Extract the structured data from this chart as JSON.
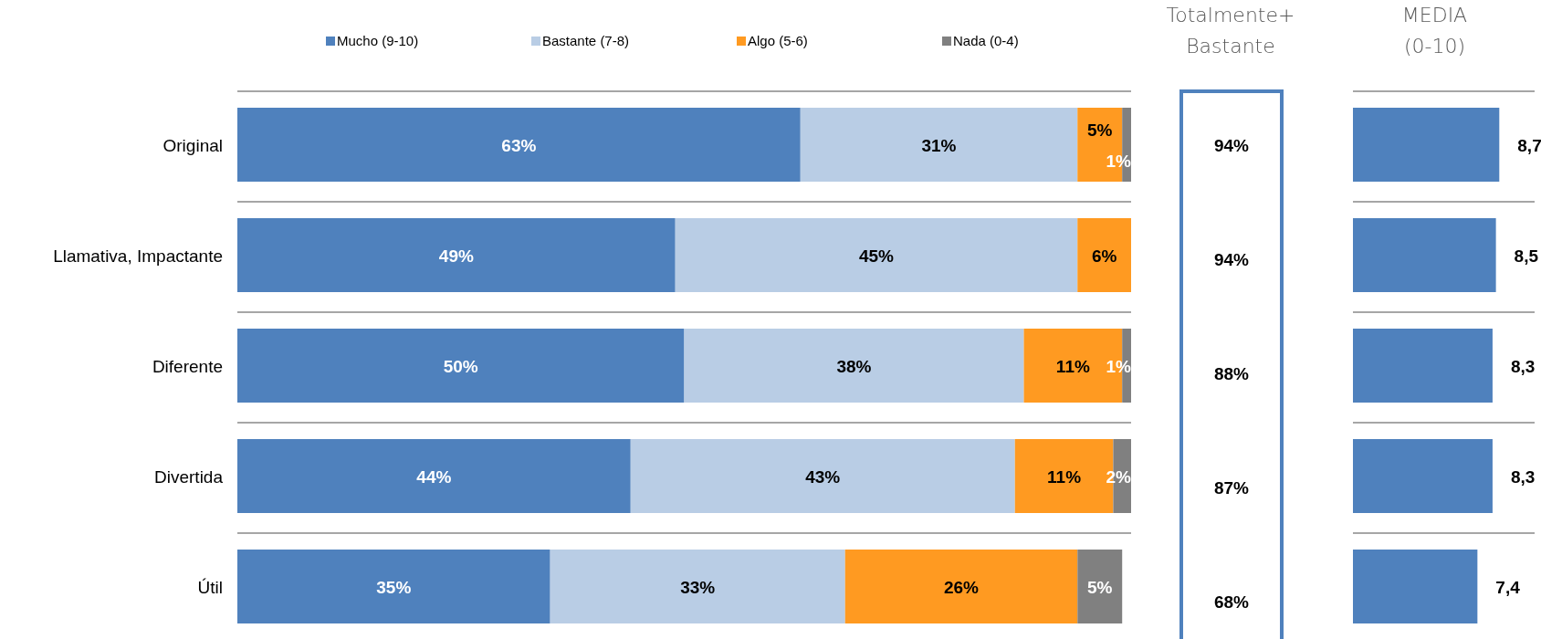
{
  "chart_data": [
    {
      "type": "bar",
      "orientation": "horizontal",
      "stacked": true,
      "categories": [
        "Original",
        "Llamativa, Impactante",
        "Diferente",
        "Divertida",
        "Útil"
      ],
      "xlim": [
        0,
        100
      ],
      "tick_labels": "y",
      "grid": "y",
      "legend": "top",
      "data_labels": true,
      "series": [
        {
          "name": "Mucho (9-10)",
          "color": "#4f81bd",
          "values": [
            63,
            49,
            50,
            44,
            35
          ],
          "value_labels": [
            "63%",
            "49%",
            "50%",
            "44%",
            "35%"
          ]
        },
        {
          "name": "Bastante (7-8)",
          "color": "#b9cde5",
          "values": [
            31,
            45,
            38,
            43,
            33
          ],
          "value_labels": [
            "31%",
            "45%",
            "38%",
            "43%",
            "33%"
          ]
        },
        {
          "name": "Algo (5-6)",
          "color": "#ff9a21",
          "values": [
            5,
            6,
            11,
            11,
            26
          ],
          "value_labels": [
            "5%",
            "6%",
            "11%",
            "11%",
            "26%"
          ]
        },
        {
          "name": "Nada (0-4)",
          "color": "#808080",
          "values": [
            1,
            null,
            1,
            2,
            5
          ],
          "value_labels": [
            "1%",
            null,
            "1%",
            "2%",
            "5%"
          ]
        }
      ]
    },
    {
      "type": "other",
      "title": "Totalmente+ Bastante",
      "annotations": [
        "94%",
        "94%",
        "88%",
        "87%",
        "68%"
      ]
    },
    {
      "type": "bar",
      "orientation": "horizontal",
      "title": "MEDIA (0-10)",
      "categories": [
        null,
        null,
        null,
        null,
        null
      ],
      "grid": "y",
      "xlim": [
        0,
        10.8
      ],
      "color": "#4f81bd",
      "values": [
        8.7,
        8.5,
        8.3,
        8.3,
        7.4
      ],
      "value_labels": [
        "8,7",
        "8,5",
        "8,3",
        "8,3",
        "7,4"
      ]
    }
  ]
}
